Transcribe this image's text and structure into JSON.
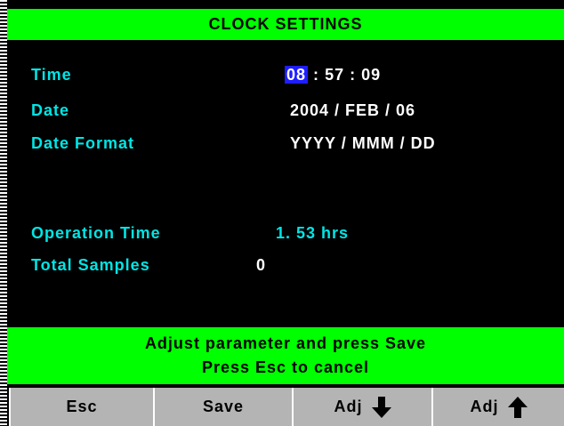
{
  "header": {
    "title": "CLOCK SETTINGS"
  },
  "fields": {
    "time": {
      "label": "Time",
      "parts": [
        "08",
        ":",
        "57",
        ":",
        "09"
      ]
    },
    "date": {
      "label": "Date",
      "value": "2004 / FEB / 06"
    },
    "date_format": {
      "label": "Date Format",
      "value": "YYYY / MMM / DD"
    },
    "operation_time": {
      "label": "Operation Time",
      "value": "1. 53 hrs"
    },
    "total_samples": {
      "label": "Total Samples",
      "value": "0"
    }
  },
  "footer": {
    "lines": [
      "Adjust parameter and press Save",
      "Press Esc to cancel"
    ]
  },
  "buttons": [
    "Esc",
    "Save",
    "Adj",
    "Adj"
  ]
}
